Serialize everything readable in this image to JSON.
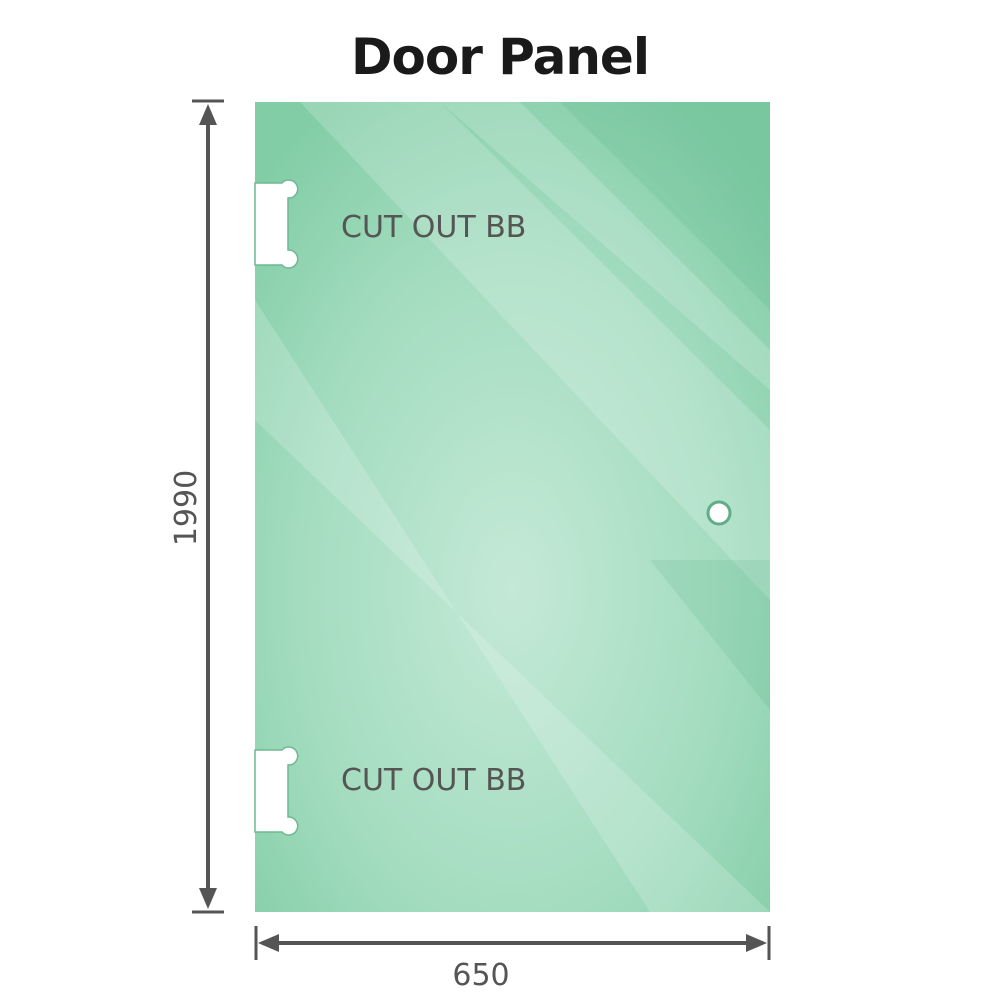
{
  "title": "Door Panel",
  "dimensions": {
    "height": "1990",
    "width": "650"
  },
  "cutouts": [
    {
      "label": "CUT OUT BB"
    },
    {
      "label": "CUT OUT BB"
    }
  ],
  "colors": {
    "glass": "#86cfa9",
    "glass_light": "#c2e8d5",
    "dimension_line": "#555555"
  }
}
